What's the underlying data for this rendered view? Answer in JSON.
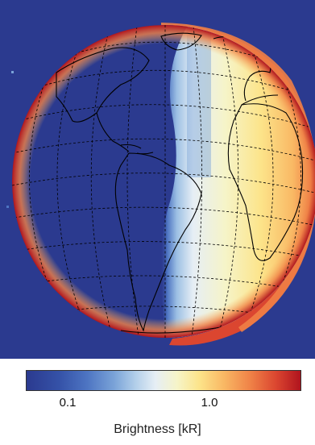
{
  "colorbar": {
    "label": "Brightness [kR]",
    "ticks": [
      {
        "value": 0.1,
        "text": "0.1"
      },
      {
        "value": 1.0,
        "text": "1.0"
      }
    ],
    "range": [
      0.03,
      4.0
    ],
    "scale": "log",
    "colors": [
      "#2b3a8f",
      "#4d74c2",
      "#b4d0ea",
      "#f6f4c8",
      "#fce48a",
      "#ef8046",
      "#b0141e"
    ]
  },
  "colors": {
    "background": "#2b3a8f",
    "coastline": "#000000",
    "graticule": "#000000"
  }
}
